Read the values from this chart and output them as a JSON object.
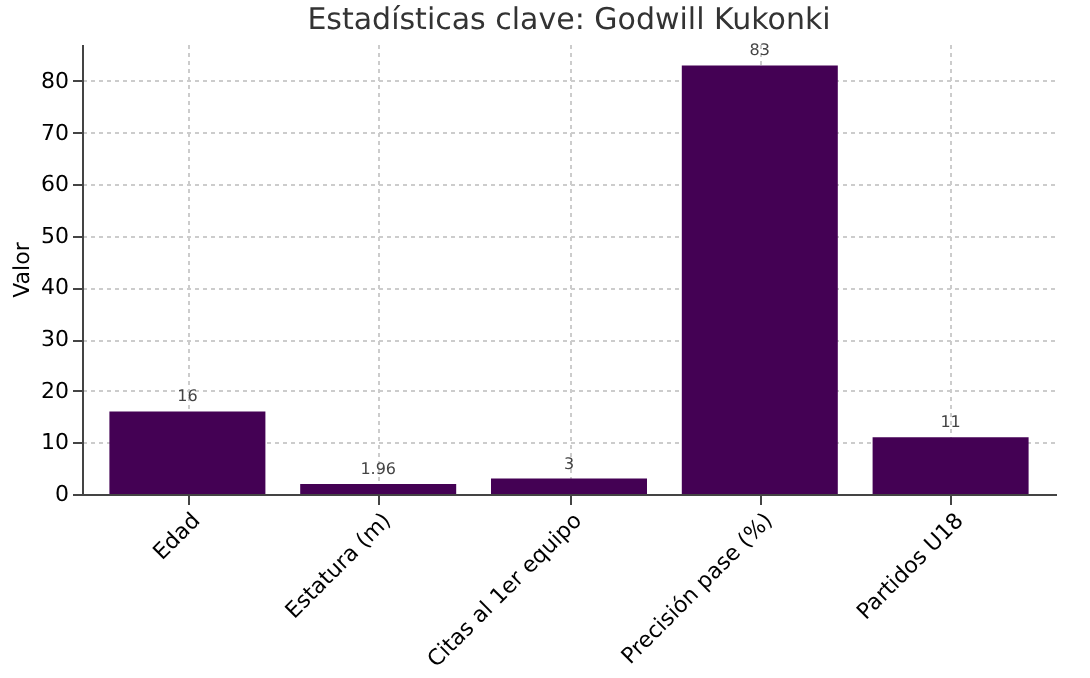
{
  "chart_data": {
    "type": "bar",
    "title": "Estadísticas clave: Godwill Kukonki",
    "ylabel": "Valor",
    "categories": [
      "Edad",
      "Estatura (m)",
      "Citas al 1er equipo",
      "Precisión pase (%)",
      "Partidos U18"
    ],
    "values": [
      16,
      1.96,
      3,
      83,
      11
    ],
    "color": "#440154",
    "ylim": [
      0,
      87.15
    ],
    "yticks": [
      0,
      10,
      20,
      30,
      40,
      50,
      60,
      70,
      80
    ],
    "grid": true,
    "data_labels": true
  }
}
